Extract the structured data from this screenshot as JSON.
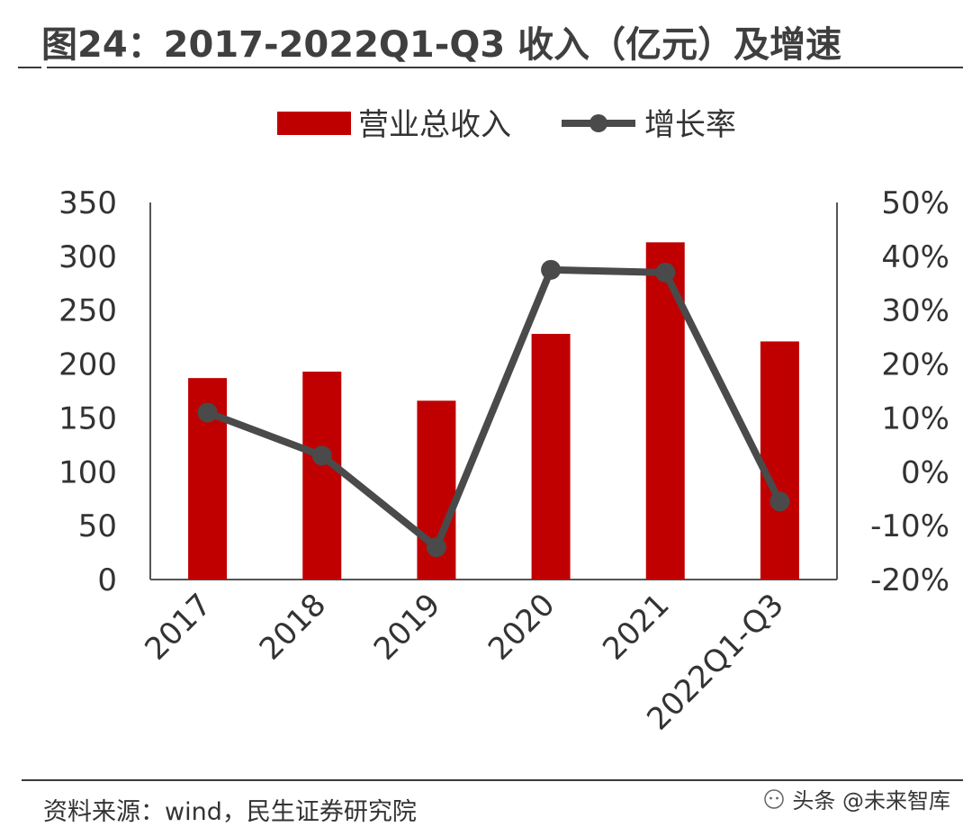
{
  "title": "图24：2017-2022Q1-Q3 收入（亿元）及增速",
  "source": "资料来源：wind，民生证券研究院",
  "watermark": "头条 @未来智库",
  "colors": {
    "bar": "#c00000",
    "line": "#4a4a4a",
    "axis": "#555555",
    "text": "#333333"
  },
  "chart_data": {
    "type": "bar",
    "categories": [
      "2017",
      "2018",
      "2019",
      "2020",
      "2021",
      "2022Q1-Q3"
    ],
    "series": [
      {
        "name": "营业总收入",
        "type": "bar",
        "axis": "left",
        "color": "#c00000",
        "values": [
          187,
          193,
          166,
          228,
          313,
          221
        ]
      },
      {
        "name": "增长率",
        "type": "line",
        "axis": "right",
        "color": "#4a4a4a",
        "values": [
          0.11,
          0.03,
          -0.14,
          0.375,
          0.37,
          -0.055
        ]
      }
    ],
    "y_left": {
      "min": 0,
      "max": 350,
      "ticks": [
        "0",
        "50",
        "100",
        "150",
        "200",
        "250",
        "300",
        "350"
      ]
    },
    "y_right": {
      "min": -0.2,
      "max": 0.5,
      "ticks": [
        "-20%",
        "-10%",
        "0%",
        "10%",
        "20%",
        "30%",
        "40%",
        "50%"
      ]
    },
    "legend": {
      "position": "top-center",
      "items": [
        "营业总收入",
        "增长率"
      ]
    },
    "grid": false
  }
}
